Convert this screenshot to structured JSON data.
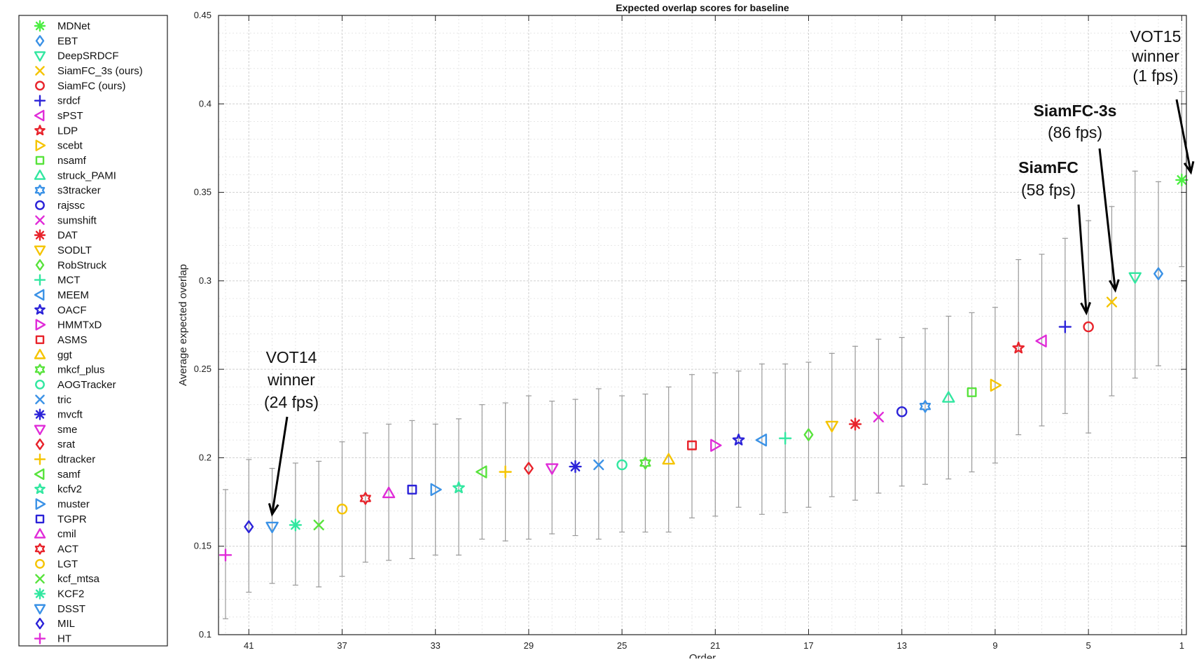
{
  "chart_data": {
    "type": "scatter",
    "title": "Expected overlap scores for baseline",
    "xlabel": "Order",
    "ylabel": "Average expected overlap",
    "xlim": [
      42.3,
      0.8
    ],
    "ylim": [
      0.1,
      0.45
    ],
    "x_ticks": [
      41,
      37,
      33,
      29,
      25,
      21,
      17,
      13,
      9,
      5,
      1
    ],
    "y_ticks": [
      0.1,
      0.15,
      0.2,
      0.25,
      0.3,
      0.35,
      0.4,
      0.45
    ],
    "grid": true,
    "legend_position": "outside-left",
    "series": [
      {
        "name": "MDNet",
        "order": 1,
        "value": 0.357,
        "low": 0.308,
        "high": 0.407,
        "color": "#4cee42",
        "marker": "asterisk"
      },
      {
        "name": "EBT",
        "order": 2,
        "value": 0.304,
        "low": 0.252,
        "high": 0.356,
        "color": "#3b92e6",
        "marker": "diamond"
      },
      {
        "name": "DeepSRDCF",
        "order": 3,
        "value": 0.302,
        "low": 0.245,
        "high": 0.362,
        "color": "#31e7a0",
        "marker": "triangle-down"
      },
      {
        "name": "SiamFC_3s (ours)",
        "order": 4,
        "value": 0.288,
        "low": 0.235,
        "high": 0.342,
        "color": "#f5c400",
        "marker": "x"
      },
      {
        "name": "SiamFC (ours)",
        "order": 5,
        "value": 0.274,
        "low": 0.214,
        "high": 0.334,
        "color": "#e8232b",
        "marker": "circle"
      },
      {
        "name": "srdcf",
        "order": 6,
        "value": 0.274,
        "low": 0.225,
        "high": 0.324,
        "color": "#2b22d8",
        "marker": "plus"
      },
      {
        "name": "sPST",
        "order": 7,
        "value": 0.266,
        "low": 0.218,
        "high": 0.315,
        "color": "#e02bd8",
        "marker": "triangle-left"
      },
      {
        "name": "LDP",
        "order": 8,
        "value": 0.262,
        "low": 0.213,
        "high": 0.312,
        "color": "#e8232b",
        "marker": "pentagram"
      },
      {
        "name": "scebt",
        "order": 9,
        "value": 0.241,
        "low": 0.197,
        "high": 0.285,
        "color": "#f5c400",
        "marker": "triangle-right"
      },
      {
        "name": "nsamf",
        "order": 10,
        "value": 0.237,
        "low": 0.192,
        "high": 0.282,
        "color": "#58e33c",
        "marker": "square"
      },
      {
        "name": "struck_PAMI",
        "order": 11,
        "value": 0.234,
        "low": 0.188,
        "high": 0.28,
        "color": "#31e7a0",
        "marker": "triangle-up"
      },
      {
        "name": "s3tracker",
        "order": 12,
        "value": 0.229,
        "low": 0.185,
        "high": 0.273,
        "color": "#3b92e6",
        "marker": "hexagram"
      },
      {
        "name": "rajssc",
        "order": 13,
        "value": 0.226,
        "low": 0.184,
        "high": 0.268,
        "color": "#2b22d8",
        "marker": "circle"
      },
      {
        "name": "sumshift",
        "order": 14,
        "value": 0.223,
        "low": 0.18,
        "high": 0.267,
        "color": "#e02bd8",
        "marker": "x"
      },
      {
        "name": "DAT",
        "order": 15,
        "value": 0.219,
        "low": 0.176,
        "high": 0.263,
        "color": "#e8232b",
        "marker": "asterisk"
      },
      {
        "name": "SODLT",
        "order": 16,
        "value": 0.218,
        "low": 0.178,
        "high": 0.259,
        "color": "#f5c400",
        "marker": "triangle-down"
      },
      {
        "name": "RobStruck",
        "order": 17,
        "value": 0.213,
        "low": 0.172,
        "high": 0.254,
        "color": "#58e33c",
        "marker": "diamond"
      },
      {
        "name": "MCT",
        "order": 18,
        "value": 0.211,
        "low": 0.169,
        "high": 0.253,
        "color": "#31e7a0",
        "marker": "plus"
      },
      {
        "name": "MEEM",
        "order": 19,
        "value": 0.21,
        "low": 0.168,
        "high": 0.253,
        "color": "#3b92e6",
        "marker": "triangle-left"
      },
      {
        "name": "OACF",
        "order": 20,
        "value": 0.21,
        "low": 0.172,
        "high": 0.249,
        "color": "#2b22d8",
        "marker": "pentagram"
      },
      {
        "name": "HMMTxD",
        "order": 21,
        "value": 0.207,
        "low": 0.167,
        "high": 0.248,
        "color": "#e02bd8",
        "marker": "triangle-right"
      },
      {
        "name": "ASMS",
        "order": 22,
        "value": 0.207,
        "low": 0.166,
        "high": 0.247,
        "color": "#e8232b",
        "marker": "square"
      },
      {
        "name": "ggt",
        "order": 23,
        "value": 0.199,
        "low": 0.158,
        "high": 0.24,
        "color": "#f5c400",
        "marker": "triangle-up"
      },
      {
        "name": "mkcf_plus",
        "order": 24,
        "value": 0.197,
        "low": 0.158,
        "high": 0.236,
        "color": "#58e33c",
        "marker": "hexagram"
      },
      {
        "name": "AOGTracker",
        "order": 25,
        "value": 0.196,
        "low": 0.158,
        "high": 0.235,
        "color": "#31e7a0",
        "marker": "circle"
      },
      {
        "name": "tric",
        "order": 26,
        "value": 0.196,
        "low": 0.154,
        "high": 0.239,
        "color": "#3b92e6",
        "marker": "x"
      },
      {
        "name": "mvcft",
        "order": 27,
        "value": 0.195,
        "low": 0.156,
        "high": 0.233,
        "color": "#2b22d8",
        "marker": "asterisk"
      },
      {
        "name": "sme",
        "order": 28,
        "value": 0.194,
        "low": 0.157,
        "high": 0.232,
        "color": "#e02bd8",
        "marker": "triangle-down"
      },
      {
        "name": "srat",
        "order": 29,
        "value": 0.194,
        "low": 0.154,
        "high": 0.235,
        "color": "#e8232b",
        "marker": "diamond"
      },
      {
        "name": "dtracker",
        "order": 30,
        "value": 0.192,
        "low": 0.153,
        "high": 0.231,
        "color": "#f5c400",
        "marker": "plus"
      },
      {
        "name": "samf",
        "order": 31,
        "value": 0.192,
        "low": 0.154,
        "high": 0.23,
        "color": "#58e33c",
        "marker": "triangle-left"
      },
      {
        "name": "kcfv2",
        "order": 32,
        "value": 0.183,
        "low": 0.145,
        "high": 0.222,
        "color": "#31e7a0",
        "marker": "pentagram"
      },
      {
        "name": "muster",
        "order": 33,
        "value": 0.182,
        "low": 0.145,
        "high": 0.219,
        "color": "#3b92e6",
        "marker": "triangle-right"
      },
      {
        "name": "TGPR",
        "order": 34,
        "value": 0.182,
        "low": 0.143,
        "high": 0.221,
        "color": "#2b22d8",
        "marker": "square"
      },
      {
        "name": "cmil",
        "order": 35,
        "value": 0.18,
        "low": 0.142,
        "high": 0.219,
        "color": "#e02bd8",
        "marker": "triangle-up"
      },
      {
        "name": "ACT",
        "order": 36,
        "value": 0.177,
        "low": 0.141,
        "high": 0.214,
        "color": "#e8232b",
        "marker": "hexagram"
      },
      {
        "name": "LGT",
        "order": 37,
        "value": 0.171,
        "low": 0.133,
        "high": 0.209,
        "color": "#f5c400",
        "marker": "circle"
      },
      {
        "name": "kcf_mtsa",
        "order": 38,
        "value": 0.162,
        "low": 0.127,
        "high": 0.198,
        "color": "#58e33c",
        "marker": "x"
      },
      {
        "name": "KCF2",
        "order": 39,
        "value": 0.162,
        "low": 0.128,
        "high": 0.197,
        "color": "#31e7a0",
        "marker": "asterisk"
      },
      {
        "name": "DSST",
        "order": 40,
        "value": 0.161,
        "low": 0.129,
        "high": 0.194,
        "color": "#3b92e6",
        "marker": "triangle-down"
      },
      {
        "name": "MIL",
        "order": 41,
        "value": 0.161,
        "low": 0.124,
        "high": 0.199,
        "color": "#2b22d8",
        "marker": "diamond"
      },
      {
        "name": "HT",
        "order": 42,
        "value": 0.145,
        "low": 0.109,
        "high": 0.182,
        "color": "#e02bd8",
        "marker": "plus"
      }
    ],
    "annotations": [
      {
        "lines": [
          "VOT15",
          "winner",
          "(1 fps)"
        ],
        "bold": false,
        "order": 1,
        "value": 0.357
      },
      {
        "lines": [
          "SiamFC-3s",
          "(86 fps)"
        ],
        "bold": true,
        "order": 4,
        "value": 0.288
      },
      {
        "lines": [
          "SiamFC",
          "(58 fps)"
        ],
        "bold": true,
        "order": 5,
        "value": 0.274
      },
      {
        "lines": [
          "VOT14",
          "winner",
          "(24 fps)"
        ],
        "bold": false,
        "order": 40,
        "value": 0.161
      }
    ]
  }
}
